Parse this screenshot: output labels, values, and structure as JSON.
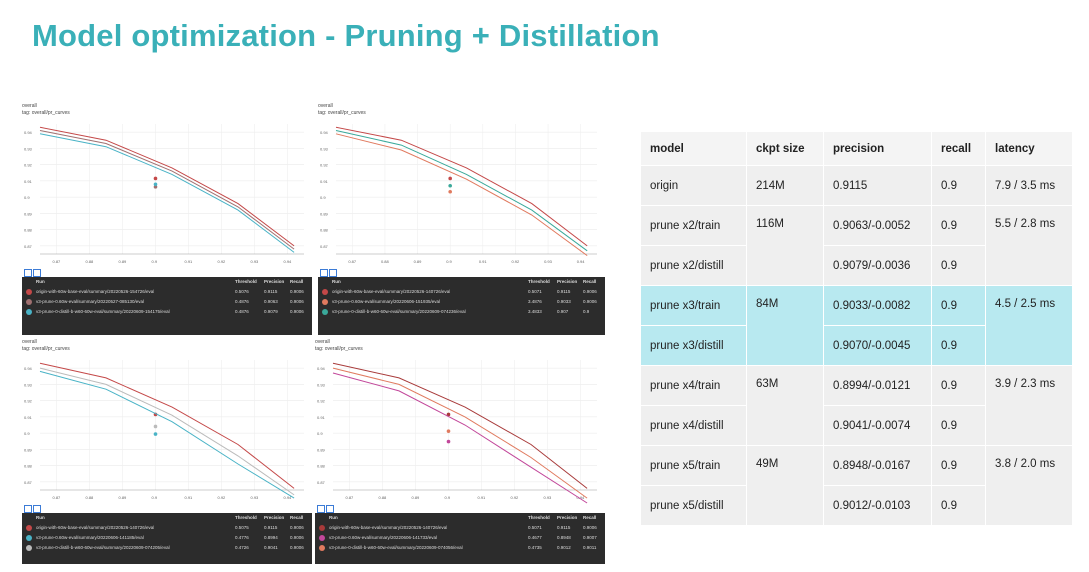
{
  "slide": {
    "title": "Model optimization - Pruning + Distillation"
  },
  "colors": {
    "title": "#3ab0b8",
    "highlight": "#b8e9f0",
    "cell": "#efefef",
    "legend_bg": "#2c2c2c"
  },
  "legend_columns": {
    "run": "Run",
    "threshold": "Threshold",
    "precision": "Precision",
    "recall": "Recall"
  },
  "panels": [
    {
      "id": "p1",
      "title": "overall",
      "subtitle": "tag: overall/pr_curves",
      "chart_data": {
        "type": "line",
        "xlim": [
          0.865,
          0.945
        ],
        "ylim": [
          0.865,
          0.945
        ],
        "xticks": [
          "0.87",
          "0.88",
          "0.89",
          "0.9",
          "0.91",
          "0.92",
          "0.93",
          "0.94"
        ],
        "yticks": [
          "0.94",
          "0.93",
          "0.92",
          "0.91",
          "0.9",
          "0.89",
          "0.88",
          "0.87"
        ],
        "series": [
          {
            "color": "#c44848",
            "x": [
              0.865,
              0.885,
              0.905,
              0.925,
              0.942
            ],
            "y": [
              0.943,
              0.935,
              0.918,
              0.896,
              0.87
            ],
            "marker": [
              0.9,
              0.9115
            ]
          },
          {
            "color": "#a07070",
            "x": [
              0.865,
              0.885,
              0.905,
              0.925,
              0.942
            ],
            "y": [
              0.941,
              0.933,
              0.916,
              0.894,
              0.868
            ],
            "marker": [
              0.9,
              0.9063
            ]
          },
          {
            "color": "#49b3c6",
            "x": [
              0.865,
              0.885,
              0.905,
              0.925,
              0.942
            ],
            "y": [
              0.939,
              0.931,
              0.914,
              0.892,
              0.866
            ],
            "marker": [
              0.9,
              0.9079
            ]
          }
        ]
      },
      "legend_rows": [
        {
          "color": "#c44848",
          "name": "origin-with-60w-base-eval/summary/20220526-154726/eval",
          "threshold": "0.5076",
          "precision": "0.9115",
          "recall": "0.9006"
        },
        {
          "color": "#a07070",
          "name": "v3-prune-0.60w-eval/summary/20220527-085130/eval",
          "threshold": "0.4876",
          "precision": "0.9063",
          "recall": "0.9006"
        },
        {
          "color": "#49b3c6",
          "name": "v3-prune-0-distill-b-w60-60w-eval/summary/20220609-154175/eval",
          "threshold": "0.4876",
          "precision": "0.9079",
          "recall": "0.9006"
        }
      ]
    },
    {
      "id": "p2",
      "title": "overall",
      "subtitle": "tag: overall/pr_curves",
      "chart_data": {
        "type": "line",
        "xlim": [
          0.865,
          0.945
        ],
        "ylim": [
          0.865,
          0.945
        ],
        "xticks": [
          "0.87",
          "0.88",
          "0.89",
          "0.9",
          "0.91",
          "0.92",
          "0.93",
          "0.94"
        ],
        "yticks": [
          "0.94",
          "0.93",
          "0.92",
          "0.91",
          "0.9",
          "0.89",
          "0.88",
          "0.87"
        ],
        "series": [
          {
            "color": "#c44848",
            "x": [
              0.865,
              0.885,
              0.905,
              0.925,
              0.942
            ],
            "y": [
              0.943,
              0.935,
              0.918,
              0.896,
              0.87
            ],
            "marker": [
              0.9,
              0.9115
            ]
          },
          {
            "color": "#e07a5f",
            "x": [
              0.865,
              0.885,
              0.905,
              0.925,
              0.942
            ],
            "y": [
              0.939,
              0.929,
              0.911,
              0.889,
              0.864
            ],
            "marker": [
              0.9,
              0.9033
            ]
          },
          {
            "color": "#3aa99a",
            "x": [
              0.865,
              0.885,
              0.905,
              0.925,
              0.942
            ],
            "y": [
              0.941,
              0.932,
              0.914,
              0.892,
              0.867
            ],
            "marker": [
              0.9,
              0.907
            ]
          }
        ]
      },
      "legend_rows": [
        {
          "color": "#c44848",
          "name": "origin-with-60w-base-eval/summary/20220526-140726/eval",
          "threshold": "0.5071",
          "precision": "0.9115",
          "recall": "0.9006"
        },
        {
          "color": "#e07a5f",
          "name": "v3-prune-0.60w-eval/summary/20220606-151935/eval",
          "threshold": "3.4876",
          "precision": "0.9033",
          "recall": "0.9006"
        },
        {
          "color": "#3aa99a",
          "name": "v3-prune-0-distill-b-w60-60w-eval/summary/20220609-074236/eval",
          "threshold": "3.4833",
          "precision": "0.907",
          "recall": "0.9"
        }
      ]
    },
    {
      "id": "p3",
      "title": "overall",
      "subtitle": "tag: overall/pr_curves",
      "chart_data": {
        "type": "line",
        "xlim": [
          0.865,
          0.945
        ],
        "ylim": [
          0.865,
          0.945
        ],
        "xticks": [
          "0.87",
          "0.88",
          "0.89",
          "0.9",
          "0.91",
          "0.92",
          "0.93",
          "0.94"
        ],
        "yticks": [
          "0.94",
          "0.93",
          "0.92",
          "0.91",
          "0.9",
          "0.89",
          "0.88",
          "0.87"
        ],
        "series": [
          {
            "color": "#c44848",
            "x": [
              0.865,
              0.885,
              0.905,
              0.925,
              0.942
            ],
            "y": [
              0.943,
              0.934,
              0.916,
              0.893,
              0.866
            ],
            "marker": [
              0.9,
              0.9115
            ]
          },
          {
            "color": "#bbbbbb",
            "x": [
              0.865,
              0.885,
              0.905,
              0.925,
              0.942
            ],
            "y": [
              0.94,
              0.93,
              0.911,
              0.886,
              0.862
            ],
            "marker": [
              0.9,
              0.9041
            ]
          },
          {
            "color": "#49b3c6",
            "x": [
              0.865,
              0.885,
              0.905,
              0.925,
              0.942
            ],
            "y": [
              0.938,
              0.927,
              0.907,
              0.881,
              0.86
            ],
            "marker": [
              0.9,
              0.8994
            ]
          }
        ]
      },
      "legend_rows": [
        {
          "color": "#c44848",
          "name": "origin-with-60w-base-eval/summary/20220526-140726/eval",
          "threshold": "0.5075",
          "precision": "0.9115",
          "recall": "0.9006"
        },
        {
          "color": "#49b3c6",
          "name": "v3-prune-0.60w-eval/summary/20220606-141185/eval",
          "threshold": "0.4776",
          "precision": "0.8994",
          "recall": "0.9006"
        },
        {
          "color": "#bbbbbb",
          "name": "v3-prune-0-distill-b-w60-60w-eval/summary/20220609-074205/eval",
          "threshold": "0.4726",
          "precision": "0.9041",
          "recall": "0.9006"
        }
      ]
    },
    {
      "id": "p4",
      "title": "overall",
      "subtitle": "tag: overall/pr_curves",
      "chart_data": {
        "type": "line",
        "xlim": [
          0.865,
          0.945
        ],
        "ylim": [
          0.865,
          0.945
        ],
        "xticks": [
          "0.87",
          "0.88",
          "0.89",
          "0.9",
          "0.91",
          "0.92",
          "0.93",
          "0.94"
        ],
        "yticks": [
          "0.94",
          "0.93",
          "0.92",
          "0.91",
          "0.9",
          "0.89",
          "0.88",
          "0.87"
        ],
        "series": [
          {
            "color": "#a83a3a",
            "x": [
              0.865,
              0.885,
              0.905,
              0.925,
              0.942
            ],
            "y": [
              0.943,
              0.934,
              0.916,
              0.893,
              0.866
            ],
            "marker": [
              0.9,
              0.9115
            ]
          },
          {
            "color": "#e07a5f",
            "x": [
              0.865,
              0.885,
              0.905,
              0.925,
              0.942
            ],
            "y": [
              0.94,
              0.93,
              0.91,
              0.885,
              0.86
            ],
            "marker": [
              0.9,
              0.9012
            ]
          },
          {
            "color": "#c2479a",
            "x": [
              0.865,
              0.885,
              0.905,
              0.925,
              0.942
            ],
            "y": [
              0.937,
              0.926,
              0.905,
              0.879,
              0.857
            ],
            "marker": [
              0.9,
              0.8948
            ]
          }
        ]
      },
      "legend_rows": [
        {
          "color": "#a83a3a",
          "name": "origin-with-60w-base-eval/summary/20220526-140726/eval",
          "threshold": "0.5071",
          "precision": "0.9115",
          "recall": "0.9006"
        },
        {
          "color": "#c2479a",
          "name": "v3-prune-0.60w-eval/summary/20220606-141733/eval",
          "threshold": "0.4677",
          "precision": "0.8948",
          "recall": "0.9007"
        },
        {
          "color": "#e07a5f",
          "name": "v3-prune-0-distill-b-w60-60w-eval/summary/20220609-074056/eval",
          "threshold": "0.4735",
          "precision": "0.9012",
          "recall": "0.9011"
        }
      ]
    }
  ],
  "table": {
    "headers": [
      "model",
      "ckpt size",
      "precision",
      "recall",
      "latency"
    ],
    "rows": [
      {
        "model": "origin",
        "ckpt": "214M",
        "precision": "0.9115",
        "recall": "0.9",
        "latency": "7.9 / 3.5 ms"
      },
      {
        "model": "prune x2/train",
        "ckpt": "116M",
        "precision": "0.9063/-0.0052",
        "recall": "0.9",
        "latency": "5.5 / 2.8 ms"
      },
      {
        "model": "prune x2/distill",
        "precision": "0.9079/-0.0036",
        "recall": "0.9"
      },
      {
        "model": "prune x3/train",
        "ckpt": "84M",
        "precision": "0.9033/-0.0082",
        "recall": "0.9",
        "latency": "4.5 / 2.5 ms"
      },
      {
        "model": "prune x3/distill",
        "precision": "0.9070/-0.0045",
        "recall": "0.9"
      },
      {
        "model": "prune x4/train",
        "ckpt": "63M",
        "precision": "0.8994/-0.0121",
        "recall": "0.9",
        "latency": "3.9 / 2.3 ms"
      },
      {
        "model": "prune x4/distill",
        "precision": "0.9041/-0.0074",
        "recall": "0.9"
      },
      {
        "model": "prune x5/train",
        "ckpt": "49M",
        "precision": "0.8948/-0.0167",
        "recall": "0.9",
        "latency": "3.8 / 2.0 ms"
      },
      {
        "model": "prune x5/distill",
        "precision": "0.9012/-0.0103",
        "recall": "0.9"
      }
    ]
  }
}
